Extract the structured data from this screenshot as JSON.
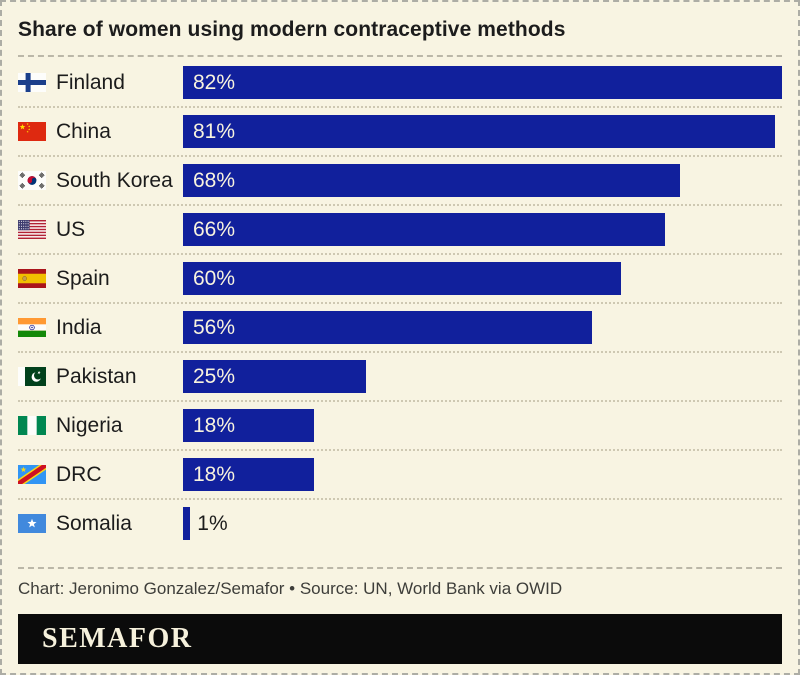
{
  "title": "Share of women using modern contraceptive methods",
  "footer": {
    "credit": "Chart: Jeronimo Gonzalez/Semafor • Source: UN, World Bank via OWID",
    "logo_text": "SEMAFOR"
  },
  "colors": {
    "background": "#F8F4E2",
    "bar": "#11209C",
    "bar_label": "#F8F3DE",
    "text": "#1C1C1C",
    "logo_bg": "#0B0B0B",
    "logo_text": "#F6F1DC"
  },
  "chart_data": {
    "type": "bar",
    "orientation": "horizontal",
    "title": "Share of women using modern contraceptive methods",
    "value_suffix": "%",
    "scale_max": 82,
    "grid": false,
    "legend": false,
    "categories": [
      "Finland",
      "China",
      "South Korea",
      "US",
      "Spain",
      "India",
      "Pakistan",
      "Nigeria",
      "DRC",
      "Somalia"
    ],
    "values": [
      82,
      81,
      68,
      66,
      60,
      56,
      25,
      18,
      18,
      1
    ],
    "value_labels": [
      "82%",
      "81%",
      "68%",
      "66%",
      "60%",
      "56%",
      "25%",
      "18%",
      "18%",
      "1%"
    ],
    "flag_icons": [
      "flag-finland-icon",
      "flag-china-icon",
      "flag-south-korea-icon",
      "flag-us-icon",
      "flag-spain-icon",
      "flag-india-icon",
      "flag-pakistan-icon",
      "flag-nigeria-icon",
      "flag-drc-icon",
      "flag-somalia-icon"
    ]
  }
}
